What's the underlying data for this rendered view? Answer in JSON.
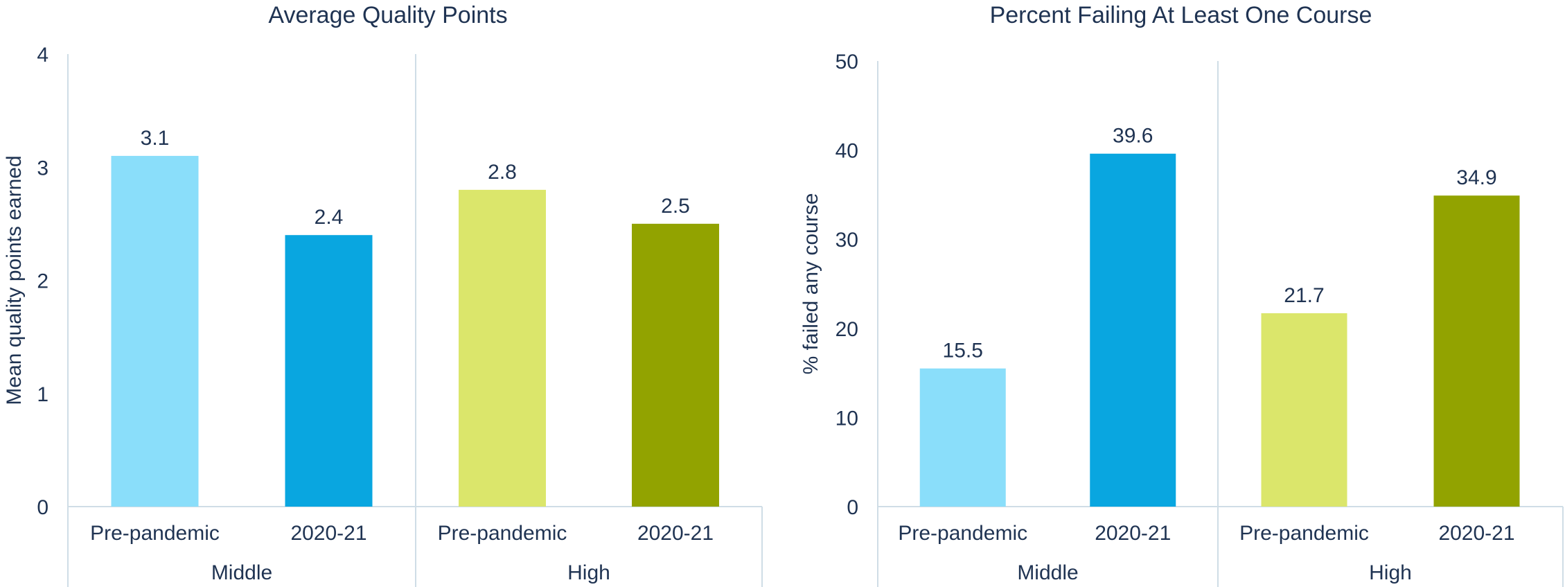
{
  "chart_data": [
    {
      "type": "bar",
      "title": "Average Quality Points",
      "ylabel": "Mean quality points earned",
      "xlabel": "",
      "ylim": [
        0,
        4
      ],
      "yticks": [
        0,
        1,
        2,
        3,
        4
      ],
      "groups": [
        "Middle",
        "High"
      ],
      "categories": [
        "Pre-pandemic",
        "2020-21",
        "Pre-pandemic",
        "2020-21"
      ],
      "values": [
        3.1,
        2.4,
        2.8,
        2.5
      ],
      "value_labels": [
        "3.1",
        "2.4",
        "2.8",
        "2.5"
      ],
      "colors": [
        "#8ADEFA",
        "#09A6E0",
        "#DBE66B",
        "#92A300"
      ],
      "grid": false
    },
    {
      "type": "bar",
      "title": "Percent Failing At Least One Course",
      "ylabel": "% failed any course",
      "xlabel": "",
      "ylim": [
        0,
        50
      ],
      "yticks": [
        0,
        10,
        20,
        30,
        40,
        50
      ],
      "groups": [
        "Middle",
        "High"
      ],
      "categories": [
        "Pre-pandemic",
        "2020-21",
        "Pre-pandemic",
        "2020-21"
      ],
      "values": [
        15.5,
        39.6,
        21.7,
        34.9
      ],
      "value_labels": [
        "15.5",
        "39.6",
        "21.7",
        "34.9"
      ],
      "colors": [
        "#8ADEFA",
        "#09A6E0",
        "#DBE66B",
        "#92A300"
      ],
      "grid": false
    }
  ]
}
